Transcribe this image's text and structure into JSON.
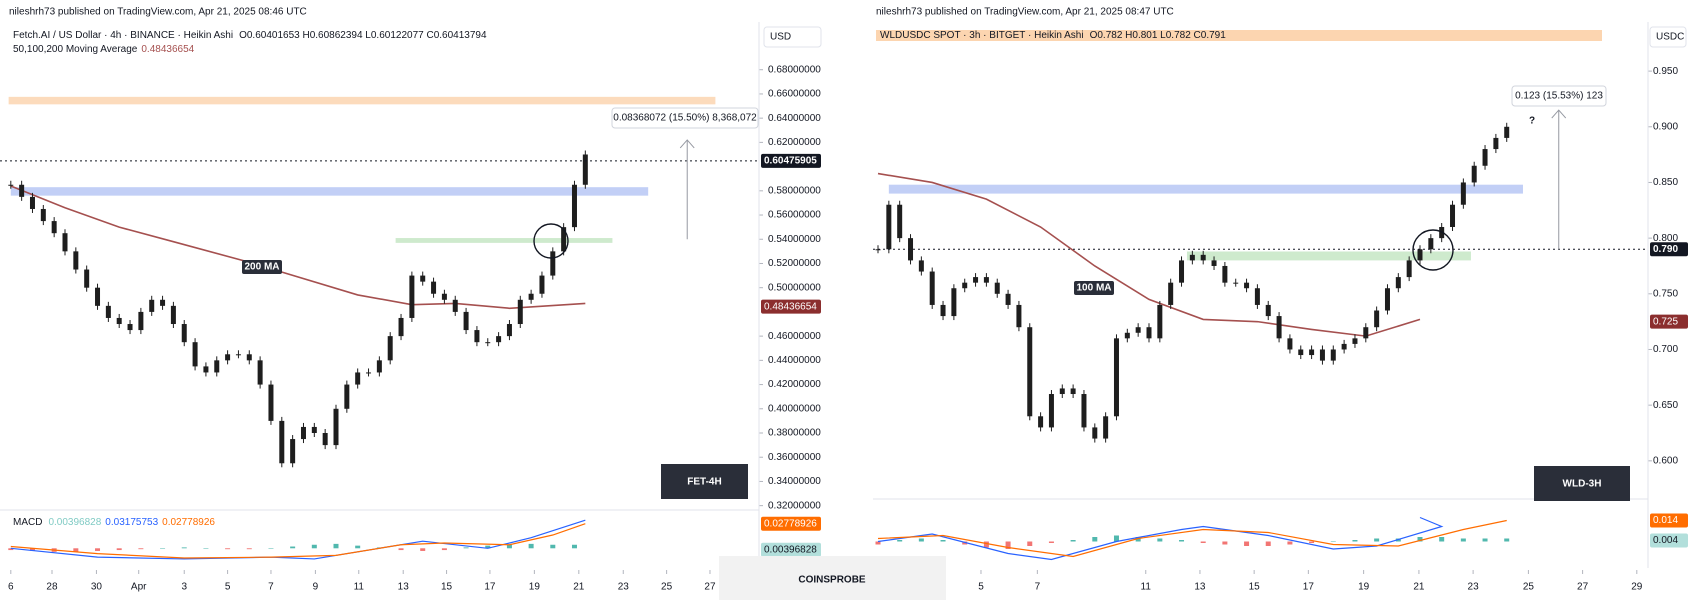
{
  "brand": "COINSPROBE",
  "chart_data": [
    {
      "type": "candlestick",
      "published": "nileshrh73 published on TradingView.com, Apr 21, 2025 08:46 UTC",
      "title": "Fetch.AI / US Dollar · 4h · BINANCE · Heikin Ashi",
      "ohlc": "O0.60401653 H0.60862394 L0.60122077 C0.60413794",
      "indicator": "50,100,200 Moving Average",
      "indicator_value": 0.48436654,
      "currency": "USD",
      "watermark": "FET-4H",
      "ylim": [
        0.316,
        0.7
      ],
      "yticks": [
        {
          "value": 0.68,
          "label": "0.68000000"
        },
        {
          "value": 0.66,
          "label": "0.66000000"
        },
        {
          "value": 0.64,
          "label": "0.64000000"
        },
        {
          "value": 0.62,
          "label": "0.62000000"
        },
        {
          "value": 0.58,
          "label": "0.58000000"
        },
        {
          "value": 0.56,
          "label": "0.56000000"
        },
        {
          "value": 0.54,
          "label": "0.54000000"
        },
        {
          "value": 0.52,
          "label": "0.52000000"
        },
        {
          "value": 0.5,
          "label": "0.50000000"
        },
        {
          "value": 0.46,
          "label": "0.46000000"
        },
        {
          "value": 0.44,
          "label": "0.44000000"
        },
        {
          "value": 0.42,
          "label": "0.42000000"
        },
        {
          "value": 0.4,
          "label": "0.40000000"
        },
        {
          "value": 0.38,
          "label": "0.38000000"
        },
        {
          "value": 0.36,
          "label": "0.36000000"
        },
        {
          "value": 0.34,
          "label": "0.34000000"
        },
        {
          "value": 0.32,
          "label": "0.32000000"
        }
      ],
      "xticks": [
        {
          "value": 0,
          "label": "6"
        },
        {
          "value": 3.8,
          "label": "28"
        },
        {
          "value": 7.9,
          "label": "30"
        },
        {
          "value": 11.8,
          "label": "Apr"
        },
        {
          "value": 16,
          "label": "3"
        },
        {
          "value": 20,
          "label": "5"
        },
        {
          "value": 24,
          "label": "7"
        },
        {
          "value": 28.1,
          "label": "9"
        },
        {
          "value": 32.1,
          "label": "11"
        },
        {
          "value": 36.2,
          "label": "13"
        },
        {
          "value": 40.2,
          "label": "15"
        },
        {
          "value": 44.2,
          "label": "17"
        },
        {
          "value": 48.3,
          "label": "19"
        },
        {
          "value": 52.4,
          "label": "21"
        },
        {
          "value": 56.5,
          "label": "23"
        },
        {
          "value": 60.5,
          "label": "25"
        },
        {
          "value": 64.5,
          "label": "27"
        }
      ],
      "color": "#1e1e1e",
      "values": [
        0.585,
        0.575,
        0.565,
        0.555,
        0.545,
        0.53,
        0.515,
        0.5,
        0.485,
        0.475,
        0.47,
        0.465,
        0.48,
        0.49,
        0.485,
        0.47,
        0.455,
        0.435,
        0.43,
        0.44,
        0.445,
        0.445,
        0.44,
        0.42,
        0.39,
        0.355,
        0.375,
        0.385,
        0.38,
        0.37,
        0.4,
        0.42,
        0.43,
        0.43,
        0.44,
        0.46,
        0.475,
        0.51,
        0.505,
        0.495,
        0.49,
        0.48,
        0.465,
        0.455,
        0.455,
        0.46,
        0.47,
        0.49,
        0.495,
        0.51,
        0.53,
        0.55,
        0.585,
        0.61
      ],
      "ma": {
        "name": "200 MA",
        "color": "#a5504f",
        "x": [
          0,
          5,
          10,
          15,
          22,
          32,
          37,
          41,
          46,
          53
        ],
        "values": [
          0.584,
          0.566,
          0.55,
          0.538,
          0.521,
          0.494,
          0.486,
          0.487,
          0.483,
          0.487
        ]
      },
      "last_price": 0.60475905,
      "zones": [
        {
          "color": "#fcd5b0",
          "ylim": [
            0.6514,
            0.6576
          ],
          "xlim": [
            -0.2,
            65
          ]
        },
        {
          "color": "#b7c7f5",
          "ylim": [
            0.576,
            0.583
          ],
          "xlim": [
            0,
            58.8
          ]
        },
        {
          "color": "#c6e6c4",
          "ylim": [
            0.537,
            0.541
          ],
          "xlim": [
            35.5,
            55.5
          ]
        }
      ],
      "measure": {
        "label": "0.08368072 (15.50%) 8,368,072",
        "from": 0.54,
        "to": 0.622,
        "x": 62.4
      },
      "macd": {
        "name": "MACD",
        "hist_last": 0.00396828,
        "macd_last": 0.03175753,
        "signal_last": 0.02778926,
        "ylim": [
          -0.02,
          0.041
        ],
        "macd_line": {
          "color": "#2962ff",
          "x": [
            0,
            8,
            16,
            24,
            28,
            34,
            38,
            44,
            48,
            53
          ],
          "values": [
            0.0,
            -0.01,
            -0.012,
            -0.01,
            -0.012,
            0.0,
            0.008,
            0.0,
            0.012,
            0.0318
          ]
        },
        "signal_line": {
          "color": "#ff6d00",
          "x": [
            0,
            8,
            16,
            24,
            30,
            36,
            40,
            46,
            50,
            53
          ],
          "values": [
            0.002,
            -0.006,
            -0.011,
            -0.01,
            -0.008,
            0.004,
            0.006,
            0.004,
            0.015,
            0.0278
          ]
        },
        "hist": {
          "x": [
            0,
            2,
            4,
            6,
            8,
            10,
            12,
            14,
            16,
            18,
            20,
            22,
            24,
            26,
            28,
            30,
            32,
            34,
            36,
            38,
            40,
            42,
            44,
            46,
            48,
            50,
            52
          ],
          "values": [
            -0.002,
            -0.003,
            -0.004,
            -0.004,
            -0.003,
            -0.002,
            -0.001,
            0,
            0.001,
            0,
            -0.001,
            -0.001,
            0,
            0.002,
            0.004,
            0.005,
            0.003,
            0.001,
            -0.002,
            -0.003,
            -0.002,
            0.001,
            0.003,
            0.004,
            0.005,
            0.004,
            0.004
          ]
        }
      }
    },
    {
      "type": "candlestick",
      "published": "nileshrh73 published on TradingView.com, Apr 21, 2025 08:47 UTC",
      "title": "WLDUSDC SPOT · 3h · BITGET · Heikin Ashi",
      "ohlc": "O0.782 H0.801 L0.782 C0.791",
      "currency": "USDC",
      "watermark": "WLD-3H",
      "question": "?",
      "ylim": [
        0.565,
        0.973
      ],
      "yticks": [
        {
          "value": 0.95,
          "label": "0.950"
        },
        {
          "value": 0.9,
          "label": "0.900"
        },
        {
          "value": 0.85,
          "label": "0.850"
        },
        {
          "value": 0.8,
          "label": "0.800"
        },
        {
          "value": 0.75,
          "label": "0.750"
        },
        {
          "value": 0.7,
          "label": "0.700"
        },
        {
          "value": 0.65,
          "label": "0.650"
        },
        {
          "value": 0.6,
          "label": "0.600"
        }
      ],
      "xticks": [
        {
          "value": 9.5,
          "label": "5"
        },
        {
          "value": 14.7,
          "label": "7"
        },
        {
          "value": 24.7,
          "label": "11"
        },
        {
          "value": 29.7,
          "label": "13"
        },
        {
          "value": 34.7,
          "label": "15"
        },
        {
          "value": 39.7,
          "label": "17"
        },
        {
          "value": 44.8,
          "label": "19"
        },
        {
          "value": 49.9,
          "label": "21"
        },
        {
          "value": 54.9,
          "label": "23"
        },
        {
          "value": 60,
          "label": "25"
        },
        {
          "value": 65,
          "label": "27"
        },
        {
          "value": 70,
          "label": "29"
        }
      ],
      "color": "#1e1e1e",
      "values": [
        0.79,
        0.83,
        0.8,
        0.78,
        0.77,
        0.74,
        0.73,
        0.755,
        0.76,
        0.765,
        0.76,
        0.75,
        0.74,
        0.72,
        0.64,
        0.63,
        0.66,
        0.665,
        0.66,
        0.63,
        0.62,
        0.64,
        0.71,
        0.715,
        0.72,
        0.71,
        0.74,
        0.76,
        0.78,
        0.785,
        0.78,
        0.775,
        0.76,
        0.76,
        0.755,
        0.74,
        0.73,
        0.71,
        0.7,
        0.695,
        0.7,
        0.69,
        0.7,
        0.705,
        0.71,
        0.72,
        0.735,
        0.755,
        0.765,
        0.78,
        0.79,
        0.8,
        0.81,
        0.83,
        0.85,
        0.865,
        0.88,
        0.89,
        0.9
      ],
      "ma": {
        "name": "100 MA",
        "color": "#a5504f",
        "x": [
          0,
          5,
          10,
          15,
          20,
          25,
          30,
          35,
          40,
          45,
          50
        ],
        "values": [
          0.858,
          0.85,
          0.835,
          0.81,
          0.775,
          0.745,
          0.727,
          0.725,
          0.718,
          0.712,
          0.727
        ]
      },
      "ma_value": 0.725,
      "last_price": {
        "value": 0.79,
        "label": "0.790"
      },
      "zones": [
        {
          "color": "#b7c7f5",
          "ylim": [
            0.84,
            0.848
          ],
          "xlim": [
            1,
            59.5
          ]
        },
        {
          "color": "#c6e6c4",
          "ylim": [
            0.78,
            0.788
          ],
          "xlim": [
            28.5,
            54.7
          ]
        }
      ],
      "measure": {
        "label": "0.123 (15.53%) 123",
        "from": 0.79,
        "to": 0.915,
        "x": 62.8
      },
      "macd": {
        "hist_last": 0.004,
        "signal_last": 0.014,
        "ylim": [
          -0.015,
          0.027
        ],
        "macd_line": {
          "color": "#2962ff",
          "x": [
            0,
            5,
            12,
            16,
            22,
            28,
            30,
            36,
            42,
            46,
            52,
            50
          ],
          "values": [
            0.0,
            0.005,
            -0.008,
            -0.012,
            0.0,
            0.008,
            0.01,
            0.004,
            -0.005,
            -0.003,
            0.01,
            0.016
          ]
        },
        "signal_line": {
          "color": "#ff6d00",
          "x": [
            0,
            6,
            12,
            18,
            24,
            30,
            36,
            42,
            48,
            54,
            58
          ],
          "values": [
            0.002,
            0.004,
            -0.004,
            -0.01,
            0.002,
            0.008,
            0.006,
            -0.002,
            -0.003,
            0.008,
            0.014
          ]
        },
        "hist": {
          "x": [
            0,
            2,
            4,
            6,
            8,
            10,
            12,
            14,
            16,
            18,
            20,
            22,
            24,
            26,
            28,
            30,
            32,
            34,
            36,
            38,
            40,
            42,
            44,
            46,
            48,
            50,
            52,
            54,
            56,
            58
          ],
          "values": [
            -0.002,
            0.001,
            0.002,
            0.001,
            -0.002,
            -0.004,
            -0.005,
            -0.003,
            -0.001,
            0.001,
            0.003,
            0.004,
            0.003,
            0.002,
            0.001,
            -0.001,
            -0.002,
            -0.003,
            -0.003,
            -0.002,
            -0.001,
            0,
            0.001,
            0.002,
            0.002,
            0.003,
            0.003,
            0.002,
            0.002,
            0.002
          ]
        }
      }
    }
  ]
}
